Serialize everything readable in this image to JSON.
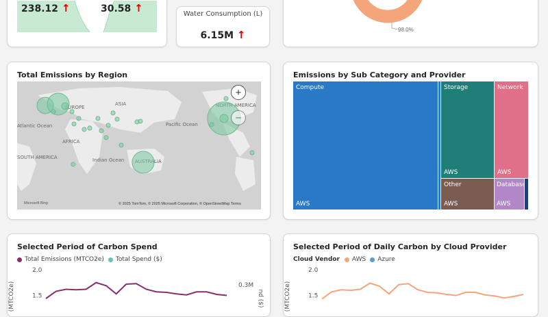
{
  "kpis": {
    "value_a": "238.12",
    "value_b": "30.58",
    "water_title": "Water Consumption (L)",
    "water_value": "6.15M",
    "arrow": "↑"
  },
  "donut": {
    "label": "98.0%",
    "color": "#f4a67a"
  },
  "map": {
    "title": "Total Emissions by Region",
    "labels": [
      "EUROPE",
      "ASIA",
      "NORTH AMERICA",
      "Atlantic Ocean",
      "Pacific Ocean",
      "AFRICA",
      "Indian Ocean",
      "AUSTRALIA",
      "SOUTH AMERICA"
    ],
    "attribution": "© 2025 TomTom, © 2025 Microsoft Corporation, © OpenStreetMap Terms",
    "bing": "Microsoft Bing",
    "zoom_in": "+",
    "zoom_out": "−"
  },
  "treemap": {
    "title": "Emissions by Sub Category and Provider",
    "tiles": [
      {
        "category": "Compute",
        "provider": "AWS",
        "color": "#2a79c6"
      },
      {
        "category": "Storage",
        "provider": "AWS",
        "color": "#1f7f78"
      },
      {
        "category": "Network",
        "provider": "AWS",
        "color": "#e0708a"
      },
      {
        "category": "Other",
        "provider": "AWS",
        "color": "#7a5b50"
      },
      {
        "category": "Database",
        "provider": "AWS",
        "color": "#b287c8"
      }
    ]
  },
  "carbon_spend": {
    "title": "Selected Period of Carbon Spend",
    "legend": [
      {
        "name": "Total Emissions (MTCO2e)",
        "color": "#8a2d6e"
      },
      {
        "name": "Total Spend ($)",
        "color": "#6fbfb5"
      }
    ],
    "ylabel_left": "(MTCO2e)",
    "ylabel_right": "nd ($)",
    "right_tick": "0.3M"
  },
  "daily_carbon": {
    "title": "Selected Period of Daily Carbon by Cloud Provider",
    "legend_title": "Cloud Vendor",
    "legend": [
      {
        "name": "AWS",
        "color": "#f4a67a"
      },
      {
        "name": "Azure",
        "color": "#5b9bd5"
      }
    ],
    "ylabel": "(MTCO2e)"
  },
  "chart_data": [
    {
      "type": "line",
      "title": "Selected Period of Carbon Spend",
      "ylabel": "(MTCO2e)",
      "ylim": [
        1.2,
        2.0
      ],
      "yticks": [
        "2.0",
        "1.5"
      ],
      "series": [
        {
          "name": "Total Emissions (MTCO2e)",
          "values": [
            1.44,
            1.58,
            1.62,
            1.61,
            1.62,
            1.75,
            1.69,
            1.53,
            1.72,
            1.73,
            1.62,
            1.57,
            1.56,
            1.53,
            1.51,
            1.57,
            1.57,
            1.52,
            1.5
          ]
        }
      ]
    },
    {
      "type": "line",
      "title": "Selected Period of Daily Carbon by Cloud Provider",
      "ylabel": "(MTCO2e)",
      "ylim": [
        1.2,
        2.0
      ],
      "yticks": [
        "2.0",
        "1.5"
      ],
      "series": [
        {
          "name": "AWS",
          "values": [
            1.43,
            1.57,
            1.61,
            1.6,
            1.62,
            1.74,
            1.68,
            1.53,
            1.71,
            1.73,
            1.61,
            1.56,
            1.55,
            1.52,
            1.5,
            1.56,
            1.56,
            1.51,
            1.49,
            1.45,
            1.48,
            1.52
          ]
        }
      ]
    }
  ]
}
